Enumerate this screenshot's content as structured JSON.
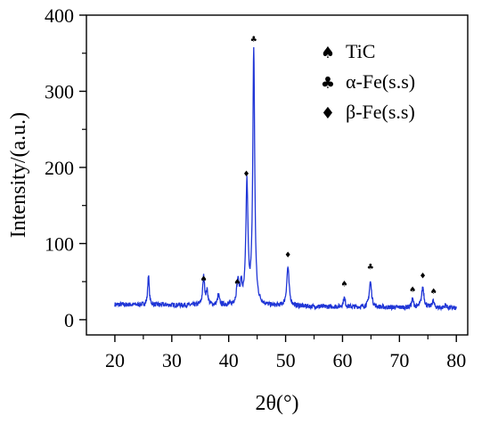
{
  "chart_data": {
    "type": "line",
    "title": "",
    "xlabel": "2θ(°)",
    "ylabel": "Intensity/(a.u.)",
    "xlim": [
      15,
      82
    ],
    "ylim": [
      -20,
      400
    ],
    "xticks": [
      20,
      30,
      40,
      50,
      60,
      70,
      80
    ],
    "yticks": [
      0,
      100,
      200,
      300,
      400
    ],
    "grid": false,
    "legend_position": "top-right",
    "colors": {
      "series": "#1f35d6",
      "axis": "#000000",
      "marker": "#000000"
    },
    "legend": [
      {
        "symbol": "spade-icon",
        "glyph": "♠",
        "label": "TiC"
      },
      {
        "symbol": "club-icon",
        "glyph": "♣",
        "label": "α-Fe(s.s)"
      },
      {
        "symbol": "diamond-icon",
        "glyph": "♦",
        "label": "β-Fe(s.s)"
      }
    ],
    "peaks": [
      {
        "x": 25.9,
        "y": 40,
        "w": 0.15
      },
      {
        "x": 35.6,
        "y": 37,
        "w": 0.2
      },
      {
        "x": 36.2,
        "y": 17,
        "w": 0.2
      },
      {
        "x": 38.2,
        "y": 13,
        "w": 0.2
      },
      {
        "x": 41.6,
        "y": 30,
        "w": 0.25
      },
      {
        "x": 42.2,
        "y": 24,
        "w": 0.2
      },
      {
        "x": 43.2,
        "y": 158,
        "w": 0.22
      },
      {
        "x": 44.4,
        "y": 334,
        "w": 0.2
      },
      {
        "x": 50.4,
        "y": 51,
        "w": 0.25
      },
      {
        "x": 60.3,
        "y": 12,
        "w": 0.2
      },
      {
        "x": 64.9,
        "y": 33,
        "w": 0.25
      },
      {
        "x": 72.3,
        "y": 11,
        "w": 0.2
      },
      {
        "x": 74.1,
        "y": 27,
        "w": 0.25
      },
      {
        "x": 75.9,
        "y": 9,
        "w": 0.2
      },
      {
        "x": 78.1,
        "y": 4,
        "w": 0.2
      }
    ],
    "baseline": 20,
    "x_range": [
      20,
      80
    ],
    "markers": [
      {
        "x": 35.6,
        "y": 50,
        "glyph": "♠"
      },
      {
        "x": 41.5,
        "y": 46,
        "glyph": "♠"
      },
      {
        "x": 43.1,
        "y": 188,
        "glyph": "♦"
      },
      {
        "x": 44.4,
        "y": 365,
        "glyph": "♣"
      },
      {
        "x": 50.4,
        "y": 82,
        "glyph": "♦"
      },
      {
        "x": 60.3,
        "y": 44,
        "glyph": "♠"
      },
      {
        "x": 64.9,
        "y": 66,
        "glyph": "♣"
      },
      {
        "x": 72.3,
        "y": 36,
        "glyph": "♠"
      },
      {
        "x": 74.1,
        "y": 54,
        "glyph": "♦"
      },
      {
        "x": 76.0,
        "y": 34,
        "glyph": "♠"
      }
    ]
  }
}
